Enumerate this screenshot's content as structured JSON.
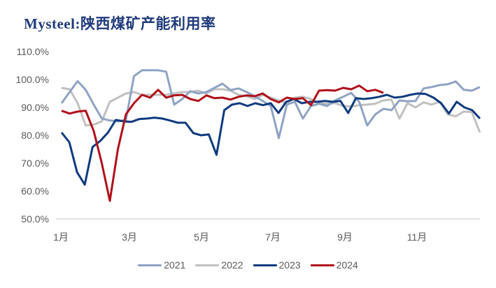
{
  "title": "Mysteel:陕西煤矿产能利用率",
  "colors": {
    "2021": "#8ea3c4",
    "2022": "#c0c0c0",
    "2023": "#0e3a7e",
    "2024": "#b0101a",
    "axis": "#d9d9d9",
    "title": "#1f3a7a"
  },
  "legend": [
    {
      "label": "2021",
      "color": "#8ea3c4"
    },
    {
      "label": "2022",
      "color": "#c0c0c0"
    },
    {
      "label": "2023",
      "color": "#0e3a7e"
    },
    {
      "label": "2024",
      "color": "#b0101a"
    }
  ],
  "chart_data": {
    "type": "line",
    "title": "Mysteel:陕西煤矿产能利用率",
    "xlabel": "",
    "ylabel": "",
    "ylim": [
      50,
      110
    ],
    "yticks": [
      "50.0%",
      "60.0%",
      "70.0%",
      "80.0%",
      "90.0%",
      "100.0%",
      "110.0%"
    ],
    "xticks": [
      "1月",
      "3月",
      "5月",
      "7月",
      "9月",
      "11月"
    ],
    "grid": false,
    "legend_position": "bottom",
    "x": "weekly index (week 1..52)",
    "series": [
      {
        "name": "2021",
        "values": [
          91.5,
          95.5,
          99.4,
          96.3,
          91.0,
          86.0,
          85.3,
          85.0,
          85.5,
          101.2,
          103.3,
          103.3,
          103.3,
          102.8,
          91.0,
          93.0,
          95.8,
          95.0,
          95.5,
          97.0,
          98.5,
          96.2,
          96.8,
          95.5,
          94.0,
          92.3,
          90.5,
          79.0,
          91.0,
          92.0,
          86.0,
          90.5,
          91.3,
          90.5,
          92.5,
          93.8,
          95.2,
          92.0,
          83.5,
          87.5,
          89.5,
          89.0,
          92.5,
          92.2,
          92.3,
          96.8,
          97.3,
          98.0,
          98.3,
          99.3,
          96.3,
          96.0,
          97.3
        ]
      },
      {
        "name": "2022",
        "values": [
          97.0,
          96.5,
          91.5,
          83.5,
          83.8,
          85.0,
          92.0,
          93.5,
          95.0,
          95.5,
          94.5,
          94.5,
          94.5,
          94.5,
          95.0,
          95.5,
          95.5,
          96.0,
          95.0,
          96.5,
          96.5,
          96.0,
          94.5,
          94.0,
          93.0,
          94.5,
          93.5,
          92.5,
          91.5,
          93.5,
          93.8,
          93.0,
          91.5,
          91.3,
          91.5,
          90.5,
          90.3,
          90.8,
          91.0,
          91.3,
          92.5,
          92.8,
          86.0,
          91.5,
          90.0,
          91.8,
          91.0,
          92.0,
          87.5,
          86.8,
          88.5,
          88.3,
          81.0
        ]
      },
      {
        "name": "2023",
        "values": [
          81.0,
          77.5,
          66.8,
          62.3,
          75.8,
          78.0,
          81.0,
          85.5,
          85.0,
          84.8,
          85.8,
          86.0,
          86.3,
          86.0,
          85.3,
          84.5,
          84.5,
          80.8,
          80.0,
          80.3,
          73.0,
          89.0,
          91.0,
          91.5,
          90.5,
          91.5,
          90.8,
          91.5,
          88.0,
          92.0,
          93.0,
          91.5,
          92.0,
          92.0,
          92.3,
          92.0,
          92.3,
          88.0,
          93.3,
          93.0,
          93.3,
          93.8,
          94.5,
          93.5,
          93.8,
          94.5,
          95.0,
          94.8,
          93.5,
          91.5,
          87.8,
          92.0,
          90.0,
          89.0,
          86.0
        ]
      },
      {
        "name": "2024",
        "values": [
          88.8,
          87.8,
          88.5,
          88.8,
          81.5,
          70.0,
          56.5,
          75.0,
          87.5,
          91.5,
          94.5,
          93.5,
          96.3,
          93.5,
          94.3,
          94.5,
          93.0,
          92.3,
          94.3,
          93.3,
          93.5,
          92.8,
          93.8,
          94.3,
          94.0,
          95.0,
          93.0,
          91.8,
          93.5,
          93.0,
          93.3,
          90.8,
          96.0,
          96.2,
          96.0,
          97.0,
          96.5,
          97.8,
          95.8,
          96.3,
          95.2
        ]
      }
    ]
  }
}
